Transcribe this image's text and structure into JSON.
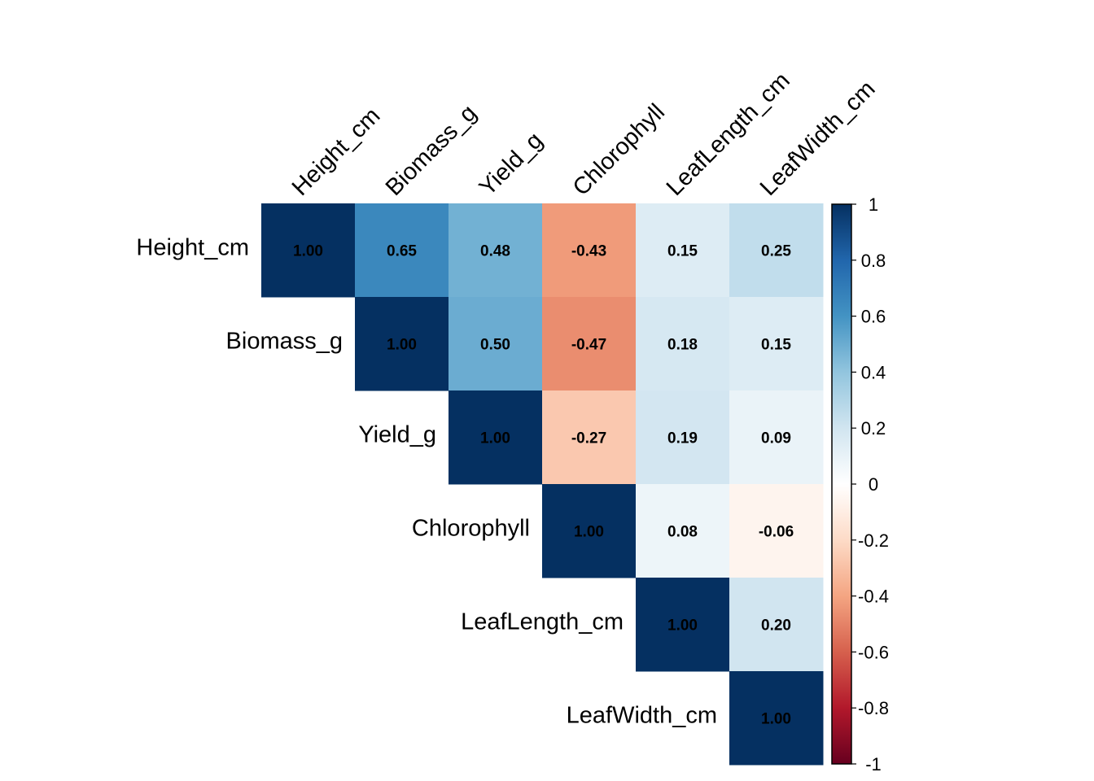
{
  "chart_data": {
    "type": "heatmap",
    "subtype": "correlation-matrix-upper",
    "title": "",
    "variables": [
      "Height_cm",
      "Biomass_g",
      "Yield_g",
      "Chlorophyll",
      "LeafLength_cm",
      "LeafWidth_cm"
    ],
    "matrix": [
      [
        1.0,
        0.65,
        0.48,
        -0.43,
        0.15,
        0.25
      ],
      [
        null,
        1.0,
        0.5,
        -0.47,
        0.18,
        0.15
      ],
      [
        null,
        null,
        1.0,
        -0.27,
        0.19,
        0.09
      ],
      [
        null,
        null,
        null,
        1.0,
        0.08,
        -0.06
      ],
      [
        null,
        null,
        null,
        null,
        1.0,
        0.2
      ],
      [
        null,
        null,
        null,
        null,
        null,
        1.0
      ]
    ],
    "labels": [
      [
        "1.00",
        "0.65",
        "0.48",
        "-0.43",
        "0.15",
        "0.25"
      ],
      [
        null,
        "1.00",
        "0.50",
        "-0.47",
        "0.18",
        "0.15"
      ],
      [
        null,
        null,
        "1.00",
        "-0.27",
        "0.19",
        "0.09"
      ],
      [
        null,
        null,
        null,
        "1.00",
        "0.08",
        "-0.06"
      ],
      [
        null,
        null,
        null,
        null,
        "1.00",
        "0.20"
      ],
      [
        null,
        null,
        null,
        null,
        null,
        "1.00"
      ]
    ],
    "colorbar": {
      "range": [
        -1,
        1
      ],
      "ticks": [
        1,
        0.8,
        0.6,
        0.4,
        0.2,
        0,
        -0.2,
        -0.4,
        -0.6,
        -0.8,
        -1
      ],
      "tick_labels": [
        "1",
        "0.8",
        "0.6",
        "0.4",
        "0.2",
        "0",
        "-0.2",
        "-0.4",
        "-0.6",
        "-0.8",
        "-1"
      ],
      "placement": "right"
    },
    "palette": [
      "#67001F",
      "#B2182B",
      "#D6604D",
      "#F4A582",
      "#FDDBC7",
      "#FFFFFF",
      "#D1E5F0",
      "#92C5DE",
      "#4393C3",
      "#2166AC",
      "#053061"
    ]
  }
}
